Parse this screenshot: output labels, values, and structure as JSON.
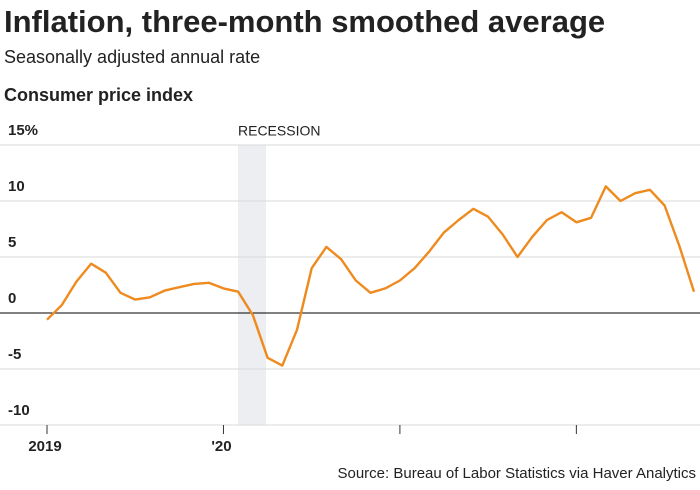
{
  "chart_data": {
    "type": "line",
    "title": "Inflation, three-month smoothed average",
    "subtitle": "Seasonally adjusted annual rate",
    "chart_title": "Consumer price index",
    "annotation": "RECESSION",
    "source": "Source: Bureau of Labor Statistics via Haver Analytics",
    "categories": [
      "2019",
      null,
      null,
      null,
      null,
      null,
      null,
      null,
      null,
      null,
      null,
      null,
      "'20",
      null,
      null,
      null,
      null,
      null,
      null,
      null,
      null,
      null,
      null,
      null,
      null,
      null,
      null,
      null,
      null,
      null,
      null,
      null,
      null,
      null,
      null,
      null,
      null,
      null,
      null,
      null,
      null,
      null,
      null,
      null,
      null
    ],
    "series": [
      {
        "name": "Consumer price index",
        "color": "#ee8a1e",
        "values": [
          -0.6,
          0.7,
          2.8,
          4.4,
          3.6,
          1.8,
          1.2,
          1.4,
          2.0,
          2.3,
          2.6,
          2.7,
          2.2,
          1.9,
          -0.2,
          -4.0,
          -4.7,
          -1.5,
          4.0,
          5.9,
          4.8,
          2.9,
          1.8,
          2.2,
          2.9,
          4.0,
          5.5,
          7.2,
          8.3,
          9.3,
          8.6,
          7.0,
          5.0,
          6.8,
          8.3,
          9.0,
          8.1,
          8.5,
          11.3,
          10.0,
          10.7,
          11.0,
          9.6,
          6.0,
          1.9
        ]
      }
    ],
    "ylim": [
      -10,
      15
    ],
    "yticks": [
      {
        "value": 15,
        "label": "15%"
      },
      10,
      5,
      0,
      -5,
      -10
    ],
    "grid": true
  }
}
